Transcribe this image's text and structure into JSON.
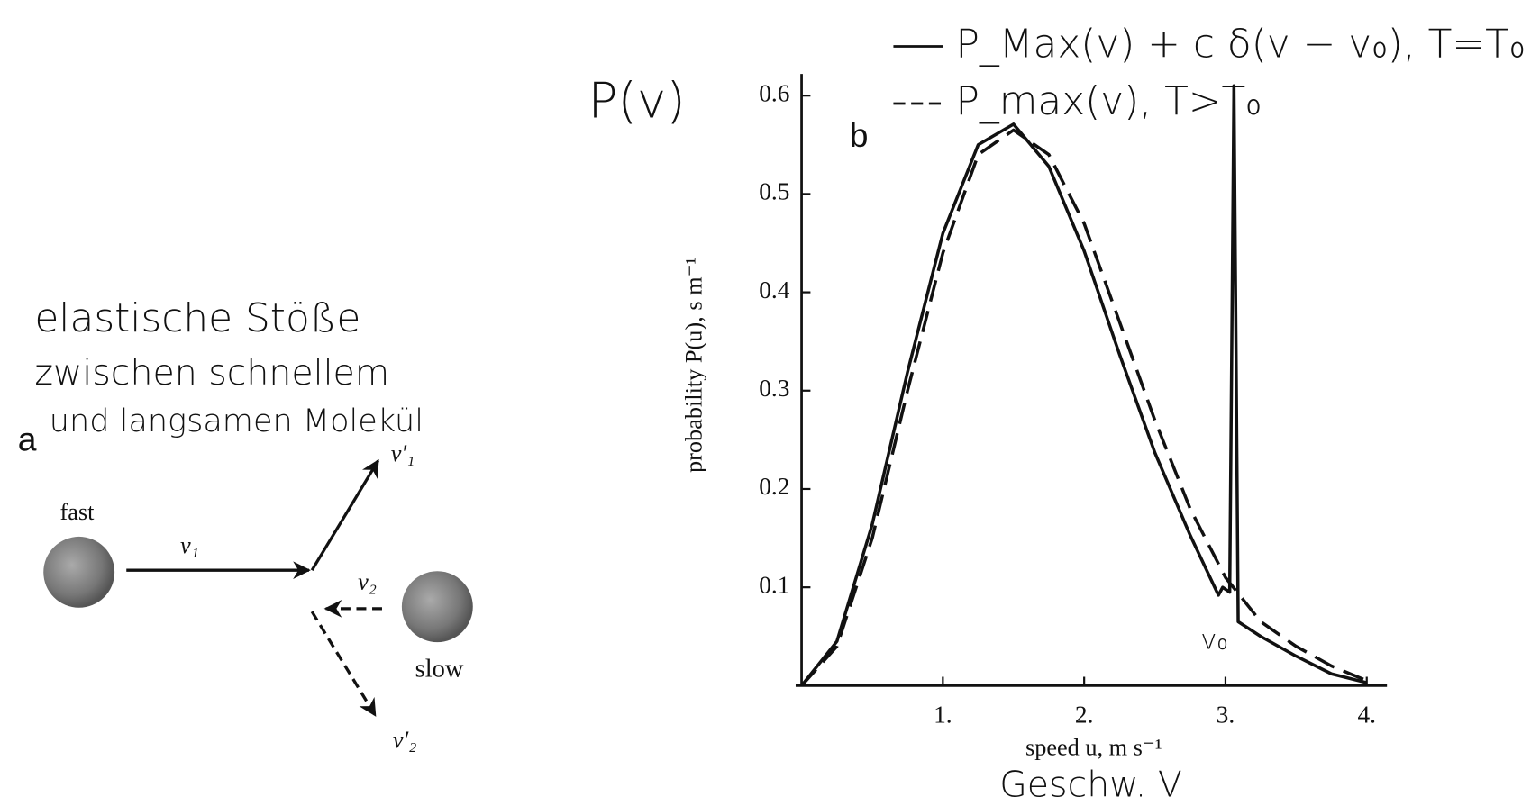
{
  "diagram": {
    "label": "a",
    "notes": [
      "elastische Stöße",
      "zwischen schnellem",
      "und langsamen Molekül"
    ],
    "fast": "fast",
    "slow": "slow",
    "v1": "v₁",
    "v2": "v₂",
    "v1p": "v′₁",
    "v2p": "v′₂"
  },
  "chart_data": {
    "type": "line",
    "panel_label": "b",
    "y_note": "P(v)",
    "x_note": "Geschw. V",
    "peak_label": "v₀",
    "x_label": "speed u,  m s⁻¹",
    "y_label": "probability P(u),  s m⁻¹",
    "xlim": [
      0,
      4.15
    ],
    "ylim": [
      0,
      0.62
    ],
    "xticks": [
      {
        "value": 1,
        "label": "1."
      },
      {
        "value": 2,
        "label": "2."
      },
      {
        "value": 3,
        "label": "3."
      },
      {
        "value": 4,
        "label": "4."
      }
    ],
    "yticks": [
      0.1,
      0.2,
      0.3,
      0.4,
      0.5,
      0.6
    ],
    "legend": "top",
    "series": [
      {
        "name": "P_Max(v) + c δ(v − v₀), T=T₀",
        "color": "#111111",
        "dash": false,
        "x": [
          0,
          0.25,
          0.5,
          0.75,
          1,
          1.25,
          1.5,
          1.75,
          2,
          2.25,
          2.5,
          2.75,
          2.95,
          2.98,
          3.03,
          3.06,
          3.09,
          3.25,
          3.5,
          3.75,
          4
        ],
        "values": [
          0,
          0.045,
          0.164,
          0.319,
          0.46,
          0.55,
          0.571,
          0.528,
          0.442,
          0.337,
          0.237,
          0.153,
          0.092,
          0.1,
          0.095,
          0.61,
          0.065,
          0.05,
          0.03,
          0.012,
          0.003
        ]
      },
      {
        "name": "P_max(v), T>T₀",
        "color": "#111111",
        "dash": true,
        "x": [
          0,
          0.25,
          0.5,
          0.75,
          1,
          1.25,
          1.5,
          1.75,
          2,
          2.25,
          2.5,
          2.75,
          3,
          3.25,
          3.5,
          3.75,
          4
        ],
        "values": [
          0,
          0.04,
          0.15,
          0.3,
          0.44,
          0.54,
          0.565,
          0.54,
          0.47,
          0.37,
          0.27,
          0.18,
          0.11,
          0.065,
          0.04,
          0.02,
          0.005
        ]
      }
    ]
  }
}
